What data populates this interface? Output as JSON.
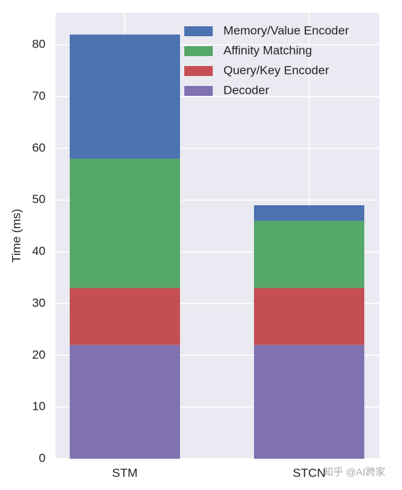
{
  "chart_data": {
    "type": "stacked-bar",
    "y_label": "Time (ms)",
    "categories": [
      "STM",
      "STCN"
    ],
    "series": [
      {
        "name": "Memory/Value Encoder",
        "color": "#4c72b0",
        "values": [
          24,
          3
        ]
      },
      {
        "name": "Affinity Matching",
        "color": "#55a868",
        "values": [
          25,
          13
        ]
      },
      {
        "name": "Query/Key Encoder",
        "color": "#c44e52",
        "values": [
          11,
          11
        ]
      },
      {
        "name": "Decoder",
        "color": "#8172b2",
        "values": [
          22,
          22
        ]
      }
    ],
    "stack_order": "bottom-up-reverse",
    "ylim": [
      0,
      86.2
    ],
    "yticks": [
      0,
      10,
      20,
      30,
      40,
      50,
      60,
      70,
      80
    ],
    "grid": true,
    "legend": "upper-right",
    "watermark": "知乎 @AI跨家"
  }
}
